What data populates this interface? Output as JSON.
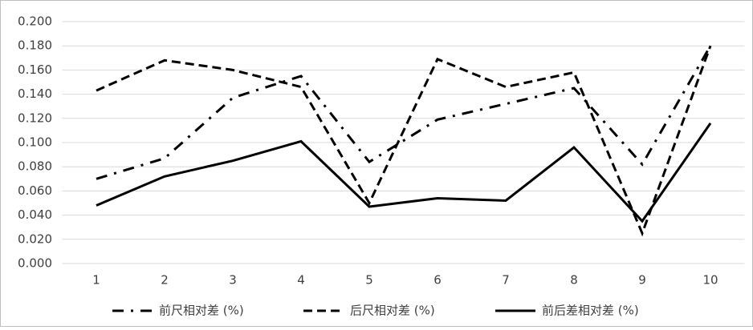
{
  "chart_data": {
    "type": "line",
    "categories": [
      "1",
      "2",
      "3",
      "4",
      "5",
      "6",
      "7",
      "8",
      "9",
      "10"
    ],
    "series": [
      {
        "name": "前尺相对差 (%)",
        "color": "#000000",
        "dash": "dash-dot",
        "values": [
          0.07,
          0.087,
          0.137,
          0.155,
          0.084,
          0.119,
          0.132,
          0.145,
          0.082,
          0.18
        ]
      },
      {
        "name": "后尺相对差 (%)",
        "color": "#000000",
        "dash": "dashed",
        "values": [
          0.143,
          0.168,
          0.16,
          0.146,
          0.05,
          0.169,
          0.146,
          0.158,
          0.025,
          0.18
        ]
      },
      {
        "name": "前后差相对差 (%)",
        "color": "#000000",
        "dash": "solid",
        "values": [
          0.048,
          0.072,
          0.085,
          0.101,
          0.047,
          0.054,
          0.052,
          0.096,
          0.035,
          0.116
        ]
      }
    ],
    "ylim": [
      0,
      0.2
    ],
    "yticks": [
      {
        "value": 0,
        "label": "0.000"
      },
      {
        "value": 0.02,
        "label": "0.020"
      },
      {
        "value": 0.04,
        "label": "0.040"
      },
      {
        "value": 0.06,
        "label": "0.060"
      },
      {
        "value": 0.08,
        "label": "0.080"
      },
      {
        "value": 0.1,
        "label": "0.100"
      },
      {
        "value": 0.12,
        "label": "0.120"
      },
      {
        "value": 0.14,
        "label": "0.140"
      },
      {
        "value": 0.16,
        "label": "0.160"
      },
      {
        "value": 0.18,
        "label": "0.180"
      },
      {
        "value": 0.2,
        "label": "0.200"
      }
    ],
    "grid": true,
    "legend": "bottom"
  }
}
